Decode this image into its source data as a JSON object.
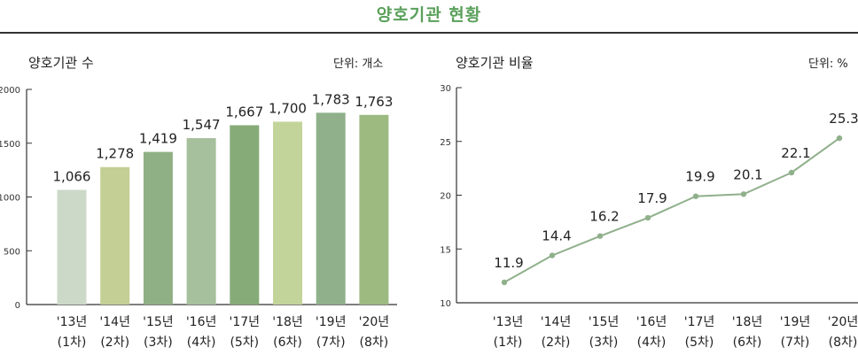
{
  "page": {
    "title": "양호기관 현황"
  },
  "chart_data": [
    {
      "type": "bar",
      "title": "양호기관 수",
      "unit": "단위: 개소",
      "categories": [
        "'13년",
        "'14년",
        "'15년",
        "'16년",
        "'17년",
        "'18년",
        "'19년",
        "'20년"
      ],
      "subcategories": [
        "(1차)",
        "(2차)",
        "(3차)",
        "(4차)",
        "(5차)",
        "(6차)",
        "(7차)",
        "(8차)"
      ],
      "values": [
        1066,
        1278,
        1419,
        1547,
        1667,
        1700,
        1783,
        1763
      ],
      "data_labels": [
        "1,066",
        "1,278",
        "1,419",
        "1,547",
        "1,667",
        "1,700",
        "1,783",
        "1,763"
      ],
      "ylim": [
        0,
        2000
      ],
      "yticks": [
        0,
        500,
        1000,
        1500,
        2000
      ],
      "bar_colors": [
        "#cdd9c8",
        "#c3cf94",
        "#8fb084",
        "#a6bf9c",
        "#86ab78",
        "#c2d49a",
        "#8fb08b",
        "#9dba81"
      ]
    },
    {
      "type": "line",
      "title": "양호기관 비율",
      "unit": "단위: %",
      "categories": [
        "'13년",
        "'14년",
        "'15년",
        "'16년",
        "'17년",
        "'18년",
        "'19년",
        "'20년"
      ],
      "subcategories": [
        "(1차)",
        "(2차)",
        "(3차)",
        "(4차)",
        "(5차)",
        "(6차)",
        "(7차)",
        "(8차)"
      ],
      "values": [
        11.9,
        14.4,
        16.2,
        17.9,
        19.9,
        20.1,
        22.1,
        25.3
      ],
      "data_labels": [
        "11.9",
        "14.4",
        "16.2",
        "17.9",
        "19.9",
        "20.1",
        "22.1",
        "25.3"
      ],
      "ylim": [
        10,
        30
      ],
      "yticks": [
        10,
        15,
        20,
        25,
        30
      ],
      "line_color": "#8fb08b"
    }
  ]
}
